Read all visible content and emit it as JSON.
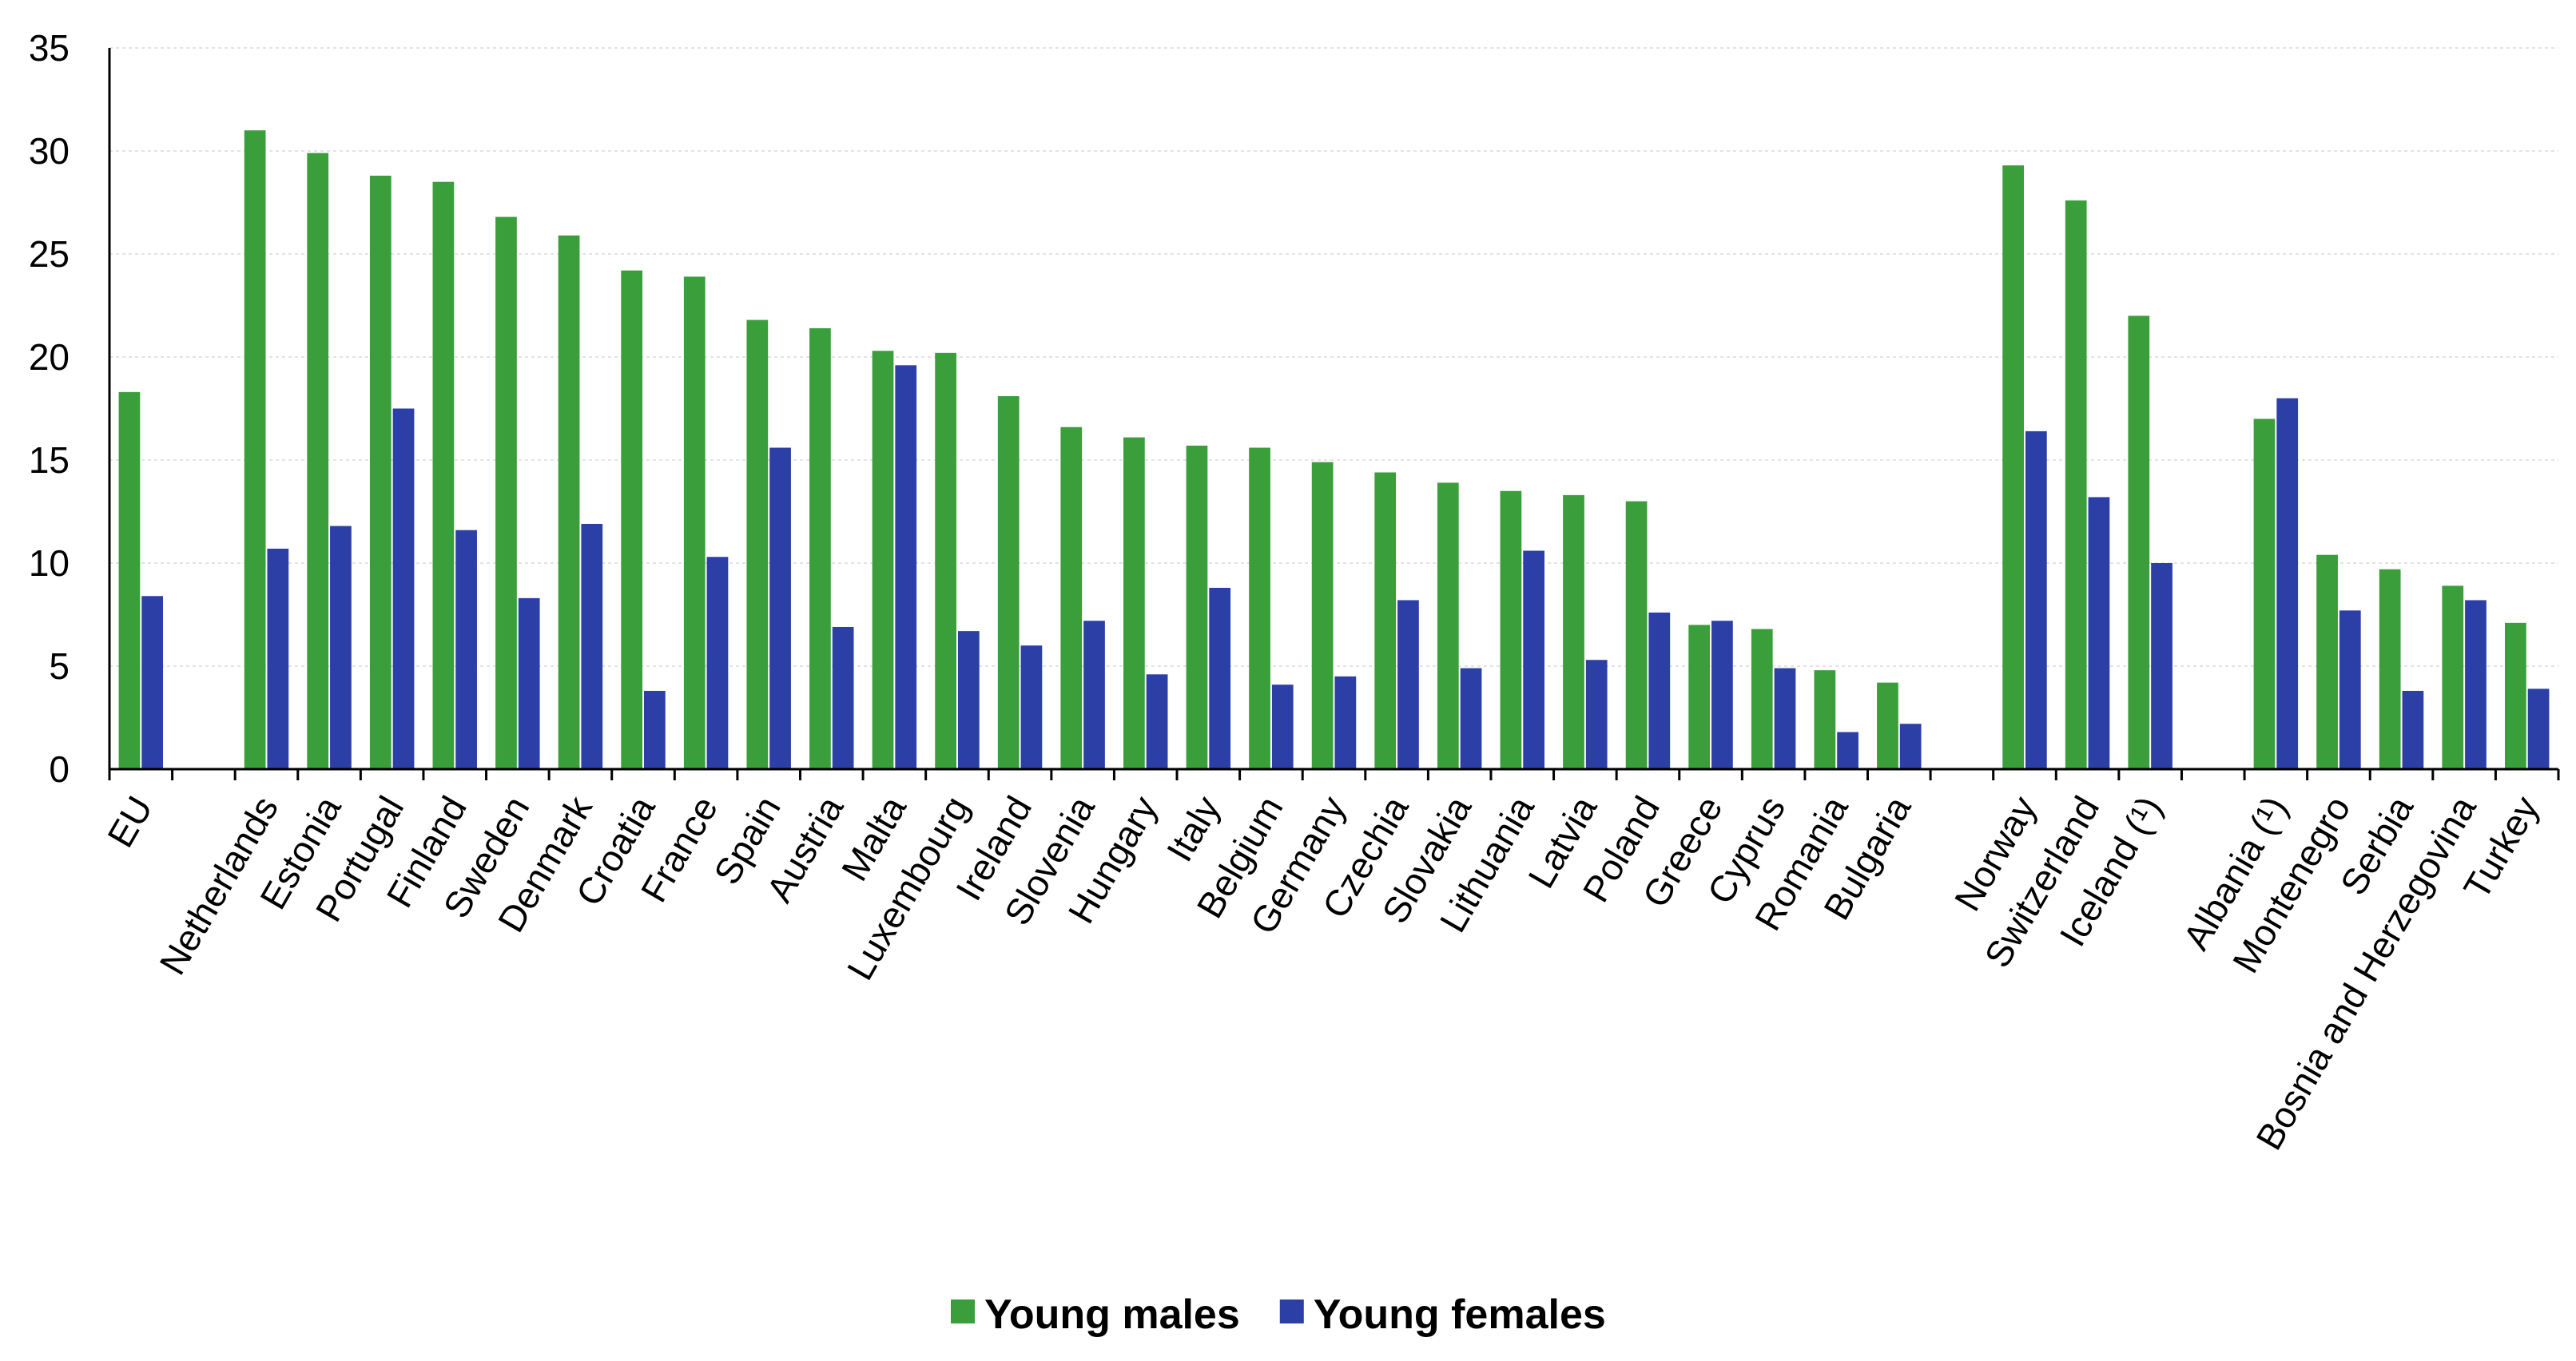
{
  "chart_data": {
    "type": "bar",
    "title": "",
    "xlabel": "",
    "ylabel": "",
    "ylim": [
      0,
      35
    ],
    "yticks": [
      0,
      5,
      10,
      15,
      20,
      25,
      30,
      35
    ],
    "grid": true,
    "legend_position": "bottom-center",
    "categories": [
      "EU",
      "Netherlands",
      "Estonia",
      "Portugal",
      "Finland",
      "Sweden",
      "Denmark",
      "Croatia",
      "France",
      "Spain",
      "Austria",
      "Malta",
      "Luxembourg",
      "Ireland",
      "Slovenia",
      "Hungary",
      "Italy",
      "Belgium",
      "Germany",
      "Czechia",
      "Slovakia",
      "Lithuania",
      "Latvia",
      "Poland",
      "Greece",
      "Cyprus",
      "Romania",
      "Bulgaria",
      "Norway",
      "Switzerland",
      "Iceland (¹)",
      "Albania (¹)",
      "Montenegro",
      "Serbia",
      "Bosnia and Herzegovina",
      "Turkey"
    ],
    "groups": [
      [
        0
      ],
      [
        1,
        2,
        3,
        4,
        5,
        6,
        7,
        8,
        9,
        10,
        11,
        12,
        13,
        14,
        15,
        16,
        17,
        18,
        19,
        20,
        21,
        22,
        23,
        24,
        25,
        26,
        27
      ],
      [
        28,
        29,
        30
      ],
      [
        31,
        32,
        33,
        34,
        35
      ]
    ],
    "series": [
      {
        "name": "Young males",
        "color": "#3a9e3a",
        "values": [
          18.3,
          31.0,
          29.9,
          28.8,
          28.5,
          26.8,
          25.9,
          24.2,
          23.9,
          21.8,
          21.4,
          20.3,
          20.2,
          18.1,
          16.6,
          16.1,
          15.7,
          15.6,
          14.9,
          14.4,
          13.9,
          13.5,
          13.3,
          13.0,
          7.0,
          6.8,
          4.8,
          4.2,
          29.3,
          27.6,
          22.0,
          17.0,
          10.4,
          9.7,
          8.9,
          7.1
        ]
      },
      {
        "name": "Young females",
        "color": "#2b3fa6",
        "values": [
          8.4,
          10.7,
          11.8,
          17.5,
          11.6,
          8.3,
          11.9,
          3.8,
          10.3,
          15.6,
          6.9,
          19.6,
          6.7,
          6.0,
          7.2,
          4.6,
          8.8,
          4.1,
          4.5,
          8.2,
          4.9,
          10.6,
          5.3,
          7.6,
          7.2,
          4.9,
          1.8,
          2.2,
          16.4,
          13.2,
          10.0,
          18.0,
          7.7,
          3.8,
          8.2,
          3.9
        ]
      }
    ]
  }
}
